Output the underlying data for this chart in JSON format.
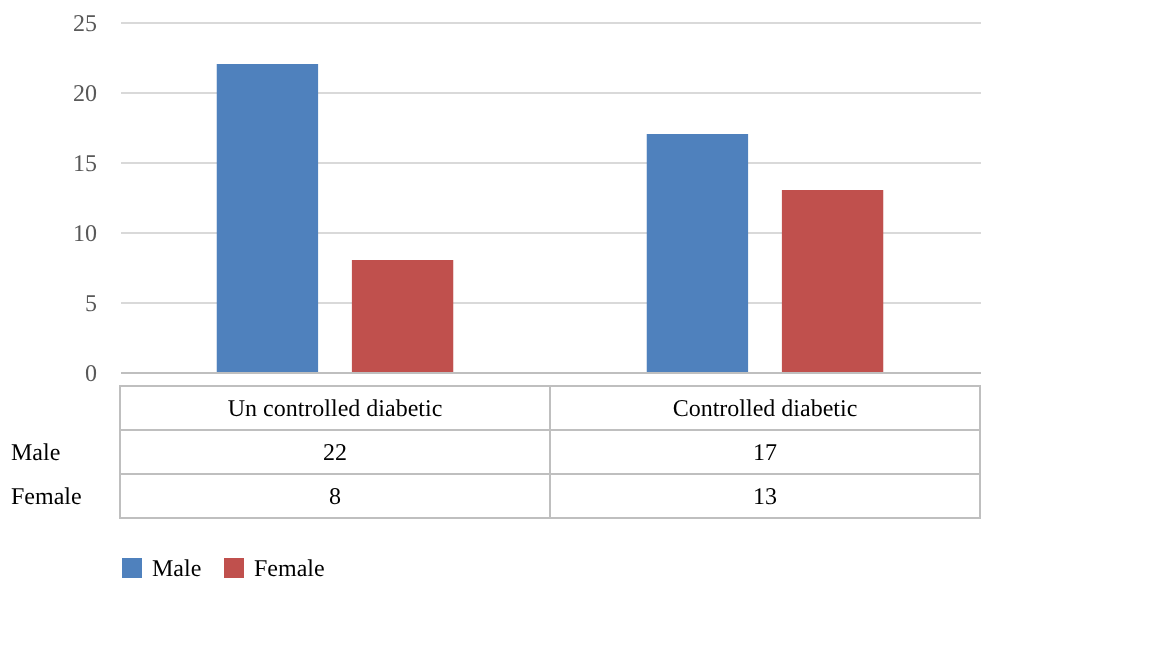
{
  "chart_data": {
    "type": "bar",
    "categories": [
      "Un controlled diabetic",
      "Controlled diabetic"
    ],
    "series": [
      {
        "name": "Male",
        "color": "#4f81bd",
        "values": [
          22,
          17
        ]
      },
      {
        "name": "Female",
        "color": "#c0504d",
        "values": [
          8,
          13
        ]
      }
    ],
    "ylim": [
      0,
      25
    ],
    "yticks": [
      0,
      5,
      10,
      15,
      20,
      25
    ],
    "grid": "y",
    "legend": "bottom",
    "data_labels": true
  }
}
